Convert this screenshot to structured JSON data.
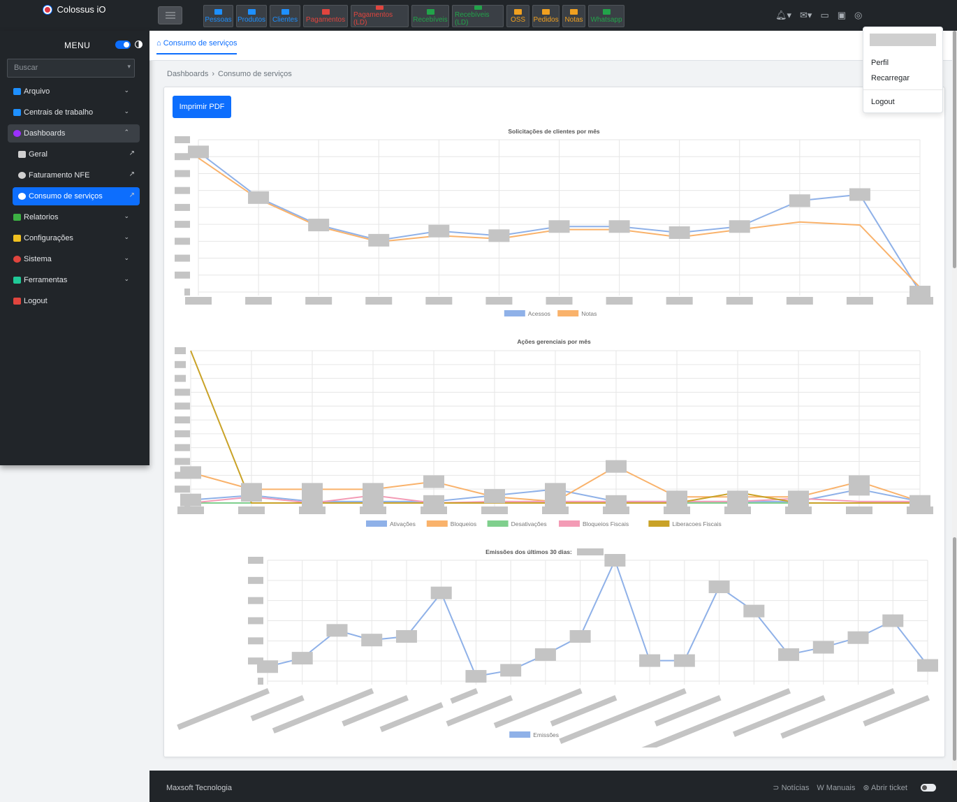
{
  "brand": {
    "name": "Colossus iO"
  },
  "shortcuts": [
    {
      "label": "Pessoas",
      "color": "#1e90ff"
    },
    {
      "label": "Produtos",
      "color": "#1e90ff"
    },
    {
      "label": "Clientes",
      "color": "#1e90ff"
    },
    {
      "label": "Pagamentos",
      "color": "#e0453e"
    },
    {
      "label": "Pagamentos (LD)",
      "color": "#e0453e"
    },
    {
      "label": "Recebíveis",
      "color": "#22a34a"
    },
    {
      "label": "Recebíveis (LD)",
      "color": "#22a34a"
    },
    {
      "label": "OSS",
      "color": "#f0a020"
    },
    {
      "label": "Pedidos",
      "color": "#f0a020"
    },
    {
      "label": "Notas",
      "color": "#f0a020"
    },
    {
      "label": "Whatsapp",
      "color": "#22a34a"
    }
  ],
  "sidebar": {
    "title": "MENU",
    "search_placeholder": "Buscar",
    "items": [
      {
        "label": "Arquivo",
        "icon": "folder-icon",
        "color": "#1e90ff"
      },
      {
        "label": "Centrais de trabalho",
        "icon": "building-icon",
        "color": "#1e90ff"
      },
      {
        "label": "Dashboards",
        "icon": "chart-pie-icon",
        "color": "#9b30ff"
      },
      {
        "label": "Geral",
        "icon": "money-icon",
        "color": "#d0d0d0"
      },
      {
        "label": "Faturamento NFE",
        "icon": "chart-pie-icon",
        "color": "#d0d0d0"
      },
      {
        "label": "Consumo de serviços",
        "icon": "chart-pie-icon",
        "color": "#ffffff"
      },
      {
        "label": "Relatorios",
        "icon": "file-icon",
        "color": "#3cb043"
      },
      {
        "label": "Configurações",
        "icon": "gears-icon",
        "color": "#f0c020"
      },
      {
        "label": "Sistema",
        "icon": "settings-icon",
        "color": "#e0453e"
      },
      {
        "label": "Ferramentas",
        "icon": "tools-icon",
        "color": "#20c997"
      },
      {
        "label": "Logout",
        "icon": "logout-icon",
        "color": "#e0453e"
      }
    ]
  },
  "tab": {
    "label": "Consumo de serviços"
  },
  "breadcrumb": {
    "root": "Dashboards",
    "current": "Consumo de serviços"
  },
  "actions": {
    "print_pdf": "Imprimir PDF"
  },
  "user_menu": {
    "profile": "Perfil",
    "reload": "Recarregar",
    "logout": "Logout"
  },
  "footer": {
    "brand": "Maxsoft Tecnologia",
    "news": "Notícias",
    "manuals": "Manuais",
    "ticket": "Abrir ticket"
  },
  "chart_data": [
    {
      "type": "line",
      "title": "Solicitações de clientes por mês",
      "grid": true,
      "legend_position": "bottom",
      "series": [
        {
          "name": "Acessos",
          "color": "#8fb1e8",
          "values": [
            92,
            62,
            44,
            34,
            40,
            37,
            43,
            43,
            39,
            43,
            60,
            64,
            0
          ]
        },
        {
          "name": "Notas",
          "color": "#f9b26b",
          "values": [
            88,
            61,
            43,
            33,
            37,
            35,
            41,
            41,
            36,
            41,
            46,
            44,
            3
          ]
        }
      ],
      "ylim": [
        0,
        100
      ]
    },
    {
      "type": "line",
      "title": "Ações gerenciais por mês",
      "grid": true,
      "legend_position": "bottom",
      "series": [
        {
          "name": "Ativações",
          "color": "#8fb1e8",
          "values": [
            2,
            5,
            1,
            1,
            1,
            5,
            9,
            1,
            1,
            1,
            1,
            9,
            1
          ]
        },
        {
          "name": "Bloqueios",
          "color": "#f9b26b",
          "values": [
            20,
            9,
            9,
            9,
            14,
            4,
            1,
            24,
            4,
            4,
            4,
            14,
            1
          ]
        },
        {
          "name": "Desativações",
          "color": "#7fcf8d",
          "values": [
            0,
            0,
            0,
            0,
            0,
            0,
            0,
            0,
            0,
            0,
            0,
            0,
            0
          ]
        },
        {
          "name": "Bloqueios Fiscais",
          "color": "#f39bb5",
          "values": [
            0,
            4,
            0,
            5,
            0,
            1,
            1,
            1,
            1,
            1,
            3,
            1,
            1
          ]
        },
        {
          "name": "Liberacoes Fiscais",
          "color": "#c9a227",
          "values": [
            100,
            0,
            0,
            0,
            0,
            0,
            0,
            0,
            0,
            7,
            0,
            0,
            0
          ]
        }
      ],
      "ylim": [
        0,
        100
      ]
    },
    {
      "type": "line",
      "title": "Emissões dos últimos 30 dias:",
      "grid": true,
      "legend_position": "bottom",
      "series": [
        {
          "name": "Emissões",
          "color": "#8fb1e8",
          "values": [
            12,
            19,
            42,
            34,
            37,
            73,
            4,
            9,
            22,
            37,
            100,
            17,
            17,
            78,
            58,
            22,
            28,
            36,
            50,
            13
          ]
        }
      ],
      "ylim": [
        0,
        100
      ]
    }
  ]
}
